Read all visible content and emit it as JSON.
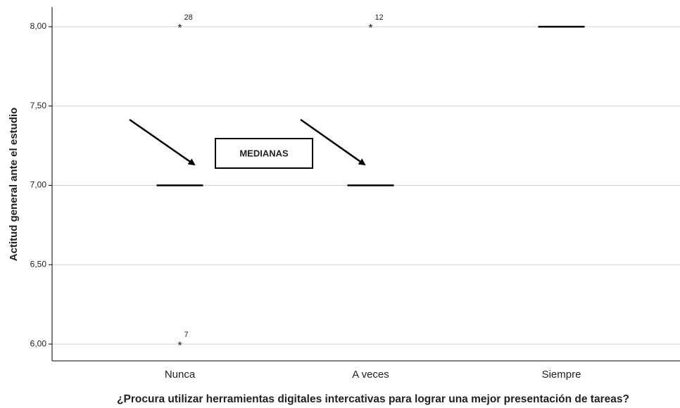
{
  "chart_data": {
    "type": "box",
    "y_label": "Actitud general ante el estudio",
    "x_label": "¿Procura utilizar herramientas digitales intercativas para lograr una mejor presentación de tareas?",
    "categories": [
      "Nunca",
      "A veces",
      "Siempre"
    ],
    "medians": [
      7,
      7,
      8
    ],
    "outliers": [
      [
        {
          "value": 8,
          "case": 28
        },
        {
          "value": 6,
          "case": 7
        }
      ],
      [
        {
          "value": 8,
          "case": 12
        }
      ],
      []
    ],
    "color": "#000000",
    "annotation": "MEDIANAS",
    "ylim": [
      5.894,
      8.124
    ],
    "yticks": [
      {
        "value": 6,
        "label": "6,00"
      },
      {
        "value": 6.5,
        "label": "6,50"
      },
      {
        "value": 7,
        "label": "7,00"
      },
      {
        "value": 7.5,
        "label": "7,50"
      },
      {
        "value": 8,
        "label": "8,00"
      }
    ],
    "grid": true
  }
}
